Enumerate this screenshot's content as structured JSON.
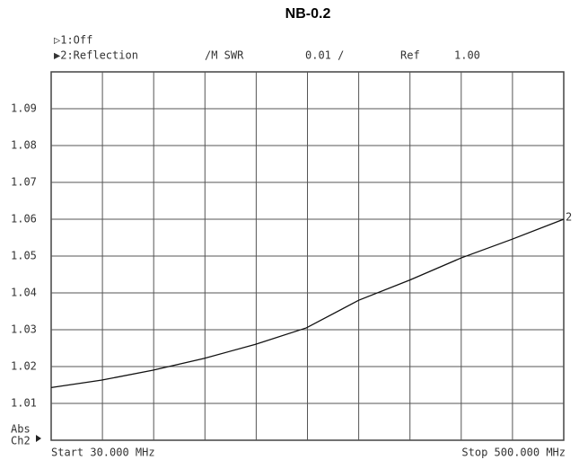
{
  "chart_data": {
    "type": "line",
    "title": "NB-0.2",
    "header": {
      "channel1": "▷1:Off",
      "channel2": "▶2:Reflection",
      "format": "/M SWR",
      "scale": "0.01 /",
      "ref_label": "Ref",
      "ref_value": "1.00"
    },
    "axis_label": [
      "Abs",
      "Ch2"
    ],
    "start_label": "Start 30.000 MHz",
    "stop_label": "Stop 500.000 MHz",
    "trace_marker": "2",
    "x": [
      30,
      76,
      123,
      170,
      217,
      264,
      312,
      359,
      406,
      452,
      500
    ],
    "series": [
      {
        "name": "2",
        "color": "#111111",
        "values": [
          1.0143,
          1.0163,
          1.019,
          1.0222,
          1.026,
          1.0305,
          1.038,
          1.0435,
          1.0495,
          1.0545,
          1.06
        ]
      }
    ],
    "xlim": [
      30,
      500
    ],
    "ylim": [
      1.0,
      1.1
    ],
    "yticks": [
      1.01,
      1.02,
      1.03,
      1.04,
      1.05,
      1.06,
      1.07,
      1.08,
      1.09
    ],
    "grid": true
  }
}
